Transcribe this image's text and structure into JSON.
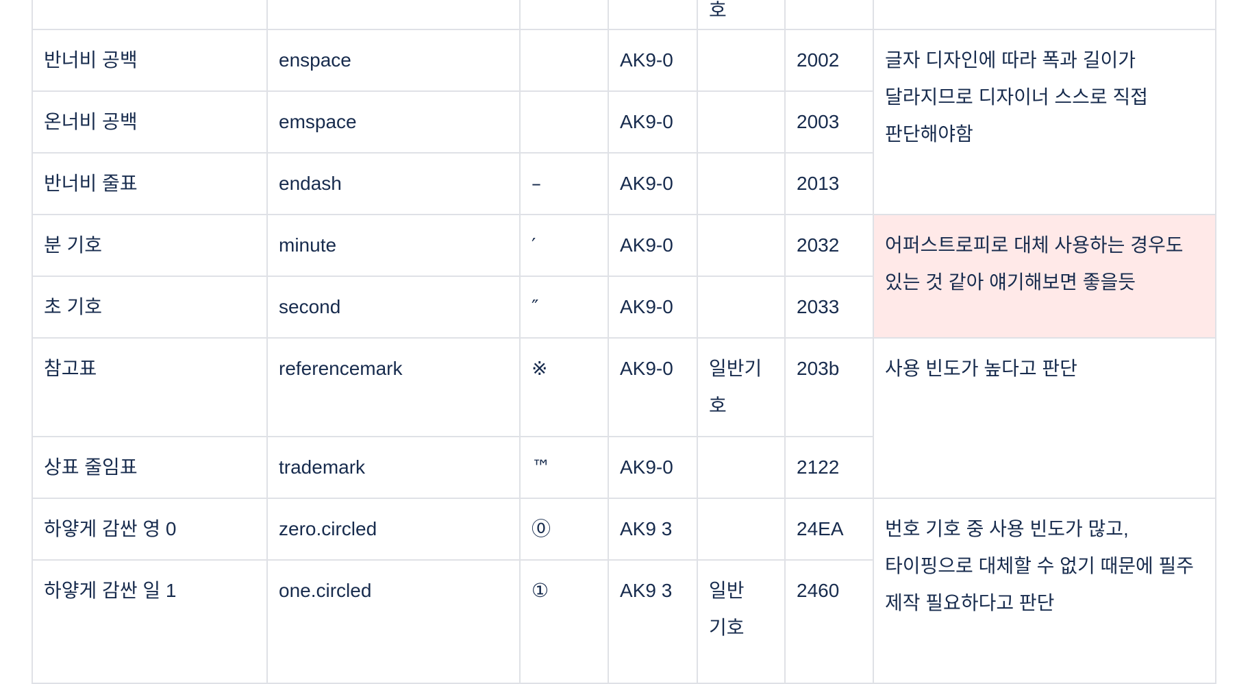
{
  "partial_row": {
    "category_fragment": "호"
  },
  "rows": [
    {
      "name": "반너비 공백",
      "glyph_name": "enspace",
      "glyph": "",
      "group": "AK9-0",
      "category": "",
      "code": "2002"
    },
    {
      "name": "온너비 공백",
      "glyph_name": "emspace",
      "glyph": "",
      "group": "AK9-0",
      "category": "",
      "code": "2003"
    },
    {
      "name": "반너비 줄표",
      "glyph_name": "endash",
      "glyph": "–",
      "group": "AK9-0",
      "category": "",
      "code": "2013"
    },
    {
      "name": "분 기호",
      "glyph_name": "minute",
      "glyph": "′",
      "group": "AK9-0",
      "category": "",
      "code": "2032"
    },
    {
      "name": "초 기호",
      "glyph_name": "second",
      "glyph": "″",
      "group": "AK9-0",
      "category": "",
      "code": "2033"
    },
    {
      "name": "참고표",
      "glyph_name": "referencemark",
      "glyph": "※",
      "group": "AK9-0",
      "category": "일반기호",
      "code": "203b"
    },
    {
      "name": "상표 줄임표",
      "glyph_name": "trademark",
      "glyph": "™",
      "group": "AK9-0",
      "category": "",
      "code": "2122"
    },
    {
      "name": "하얗게 감싼 영 0",
      "glyph_name": "zero.circled",
      "glyph": "⓪",
      "group": "AK9 3",
      "category": "",
      "code": "24EA"
    },
    {
      "name": "하얗게 감싼 일 1",
      "glyph_name": "one.circled",
      "glyph": "①",
      "group": "AK9 3",
      "category": "일반 기호",
      "code": "2460"
    }
  ],
  "notes": {
    "spaces": "글자 디자인에 따라 폭과 길이가 달라지므로 디자이너 스스로 직접 판단해야함",
    "primes": "어퍼스트로피로 대체 사용하는 경우도 있는 것 같아 얘기해보면 좋을듯",
    "marks": "사용 빈도가 높다고 판단",
    "circled": "번호 기호 중 사용 빈도가 많고, 타이핑으로 대체할 수 없기 때문에 필주 제작 필요하다고 판단"
  },
  "colors": {
    "text": "#172b4d",
    "border": "#dfe1e6",
    "highlight": "#ffe9e8"
  }
}
